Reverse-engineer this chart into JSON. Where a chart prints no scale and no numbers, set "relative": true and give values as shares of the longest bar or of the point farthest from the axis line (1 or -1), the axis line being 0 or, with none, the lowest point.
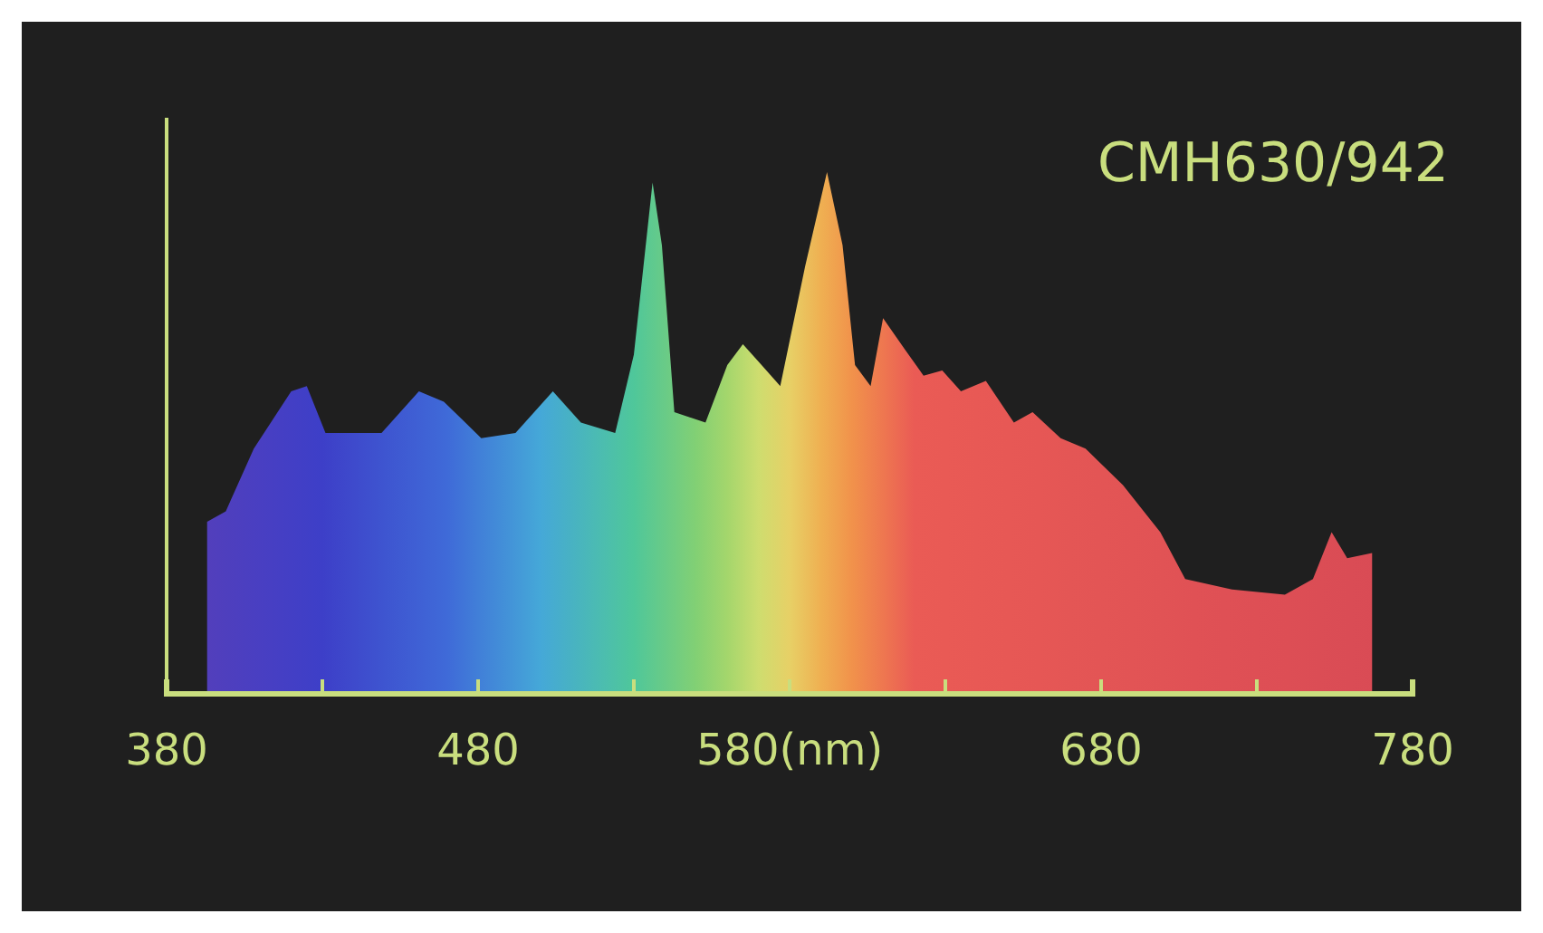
{
  "chart_data": {
    "type": "area",
    "title": "CMH630/942",
    "relative": true,
    "tick_labels": "x",
    "xlim": [
      380,
      780
    ],
    "xticks": [
      380,
      {
        "value": 430,
        "label": null
      },
      480,
      {
        "value": 530,
        "label": null
      },
      {
        "value": 580,
        "label": "580(nm)"
      },
      {
        "value": 630,
        "label": null
      },
      680,
      {
        "value": 730,
        "label": null
      },
      780
    ],
    "series": [
      {
        "x": [
          393,
          399,
          408,
          420,
          425,
          431,
          449,
          461,
          469,
          481,
          492,
          504,
          513,
          524,
          530,
          536,
          539,
          543,
          553,
          560,
          565,
          571,
          577,
          585,
          592,
          597,
          601,
          606,
          610,
          617,
          623,
          629,
          635,
          643,
          652,
          658,
          667,
          675,
          687,
          699,
          707,
          722,
          739,
          748,
          754,
          759,
          767
        ],
        "values": [
          0.33,
          0.35,
          0.47,
          0.58,
          0.59,
          0.5,
          0.5,
          0.58,
          0.56,
          0.49,
          0.5,
          0.58,
          0.52,
          0.5,
          0.65,
          0.98,
          0.86,
          0.54,
          0.52,
          0.63,
          0.67,
          0.63,
          0.59,
          0.82,
          1,
          0.86,
          0.63,
          0.59,
          0.72,
          0.66,
          0.61,
          0.62,
          0.58,
          0.6,
          0.52,
          0.54,
          0.49,
          0.47,
          0.4,
          0.31,
          0.22,
          0.2,
          0.19,
          0.22,
          0.31,
          0.26,
          0.27
        ]
      }
    ]
  }
}
